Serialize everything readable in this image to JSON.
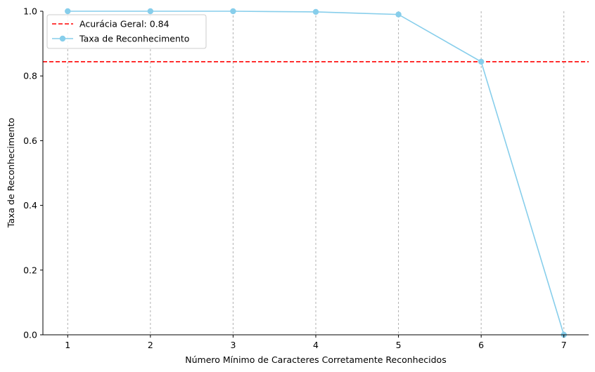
{
  "chart_data": {
    "type": "line",
    "title": "",
    "xlabel": "Número Mínimo de Caracteres Corretamente Reconhecidos",
    "ylabel": "Taxa de Reconhecimento",
    "x": [
      1,
      2,
      3,
      4,
      5,
      6,
      7
    ],
    "xlim": [
      0.7,
      7.3
    ],
    "ylim": [
      0.0,
      1.0
    ],
    "x_ticks": [
      "1",
      "2",
      "3",
      "4",
      "5",
      "6",
      "7"
    ],
    "y_ticks": [
      "0.0",
      "0.2",
      "0.4",
      "0.6",
      "0.8",
      "1.0"
    ],
    "grid": "vertical dashed",
    "legend_position": "top-left",
    "series": [
      {
        "name": "Taxa de Reconhecimento",
        "values": [
          1.0,
          1.0,
          1.0,
          0.998,
          0.99,
          0.844,
          0.0
        ],
        "color": "#87ceeb",
        "marker": "circle"
      }
    ],
    "reference_lines": [
      {
        "name": "Acurácia Geral: 0.84",
        "y": 0.844,
        "color": "#ff0000",
        "style": "dashed"
      }
    ]
  }
}
